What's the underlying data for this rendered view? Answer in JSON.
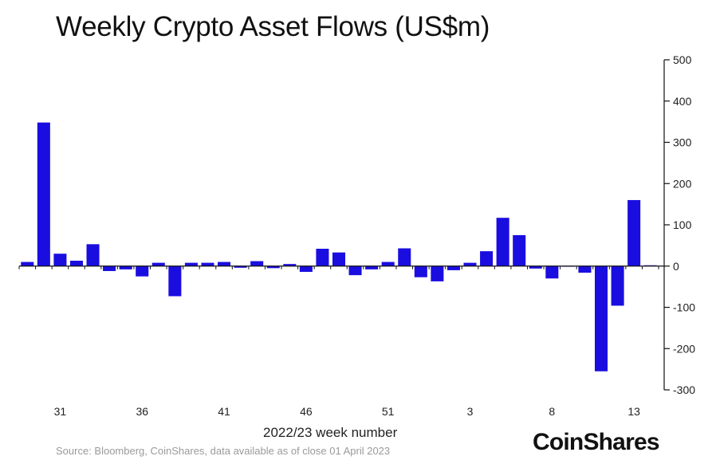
{
  "chart_data": {
    "type": "bar",
    "title": "Weekly Crypto Asset Flows (US$m)",
    "xlabel": "2022/23 week number",
    "ylabel": "",
    "ylim": [
      -300,
      500
    ],
    "y_ticks": [
      "500",
      "400",
      "300",
      "200",
      "100",
      "0",
      "-100",
      "-200",
      "-300"
    ],
    "y_tick_values": [
      500,
      400,
      300,
      200,
      100,
      0,
      -100,
      -200,
      -300
    ],
    "x_tick_labels": [
      "31",
      "36",
      "41",
      "46",
      "51",
      "3",
      "8",
      "13"
    ],
    "x_tick_week_index": [
      2,
      7,
      12,
      17,
      22,
      27,
      32,
      37
    ],
    "y_axis_position": "right",
    "grid": false,
    "bar_color": "#1a0de0",
    "series": [
      {
        "values": [
          10,
          348,
          30,
          13,
          53,
          -12,
          -8,
          -25,
          8,
          -73,
          8,
          8,
          10,
          -4,
          12,
          -5,
          5,
          -14,
          42,
          33,
          -22,
          -8,
          10,
          43,
          -27,
          -37,
          -10,
          8,
          36,
          117,
          75,
          -6,
          -30,
          0,
          -16,
          -255,
          -96,
          160,
          2
        ]
      }
    ]
  },
  "footer": {
    "source": "Source: Bloomberg, CoinShares, data available as of close 01 April 2023",
    "brand": "CoinShares"
  }
}
